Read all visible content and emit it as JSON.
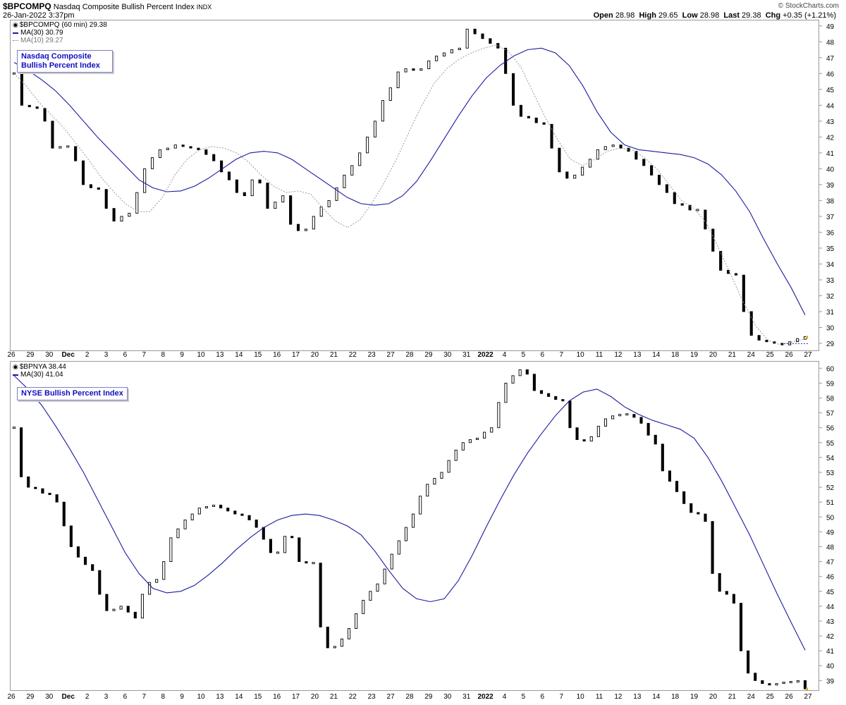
{
  "header": {
    "symbol": "$BPCOMPQ",
    "name": "Nasdaq Composite Bullish Percent Index",
    "exchange": "INDX",
    "datetime": "26-Jan-2022 3:37pm",
    "brand": "© StockCharts.com",
    "open_label": "Open",
    "open": "28.98",
    "high_label": "High",
    "high": "29.65",
    "low_label": "Low",
    "low": "28.98",
    "last_label": "Last",
    "last": "29.38",
    "chg_label": "Chg",
    "chg": "+0.35 (+1.21%)"
  },
  "colors": {
    "ma30": "#1a1aa0",
    "ma10": "#999999",
    "candle_down": "#000000",
    "candle_up": "#ffffff",
    "annotation": "#1010c0",
    "last_marker": "#d4b000"
  },
  "x_axis_labels": [
    "26",
    "29",
    "30",
    "Dec",
    "2",
    "3",
    "6",
    "7",
    "8",
    "9",
    "10",
    "13",
    "14",
    "15",
    "16",
    "17",
    "20",
    "21",
    "22",
    "23",
    "27",
    "28",
    "29",
    "30",
    "31",
    "2022",
    "4",
    "5",
    "6",
    "7",
    "10",
    "11",
    "12",
    "13",
    "14",
    "18",
    "19",
    "20",
    "21",
    "24",
    "25",
    "26",
    "27"
  ],
  "chart_data": [
    {
      "type": "line",
      "title": "$BPCOMPQ (60 min) 29.38",
      "annotation": "Nasdaq Composite Bullish Percent Index",
      "ylim": [
        28.6,
        49.3
      ],
      "y_ticks": [
        29,
        30,
        31,
        32,
        33,
        34,
        35,
        36,
        37,
        38,
        39,
        40,
        41,
        42,
        43,
        44,
        45,
        46,
        47,
        48,
        49
      ],
      "series": [
        {
          "name": "$BPCOMPQ (60 min) 29.38",
          "style": "candlestick",
          "values": [
            46,
            44,
            43.9,
            43.8,
            43,
            41.3,
            41.4,
            41.4,
            40.5,
            39,
            38.8,
            38.7,
            37.5,
            36.7,
            37,
            37.2,
            38.5,
            40,
            40.7,
            41.2,
            41.3,
            41.5,
            41.4,
            41.3,
            41.2,
            40.9,
            40.5,
            39.8,
            39.3,
            38.5,
            38.3,
            39.3,
            39.1,
            37.5,
            37.9,
            38.3,
            36.5,
            36.1,
            36.2,
            37,
            37.6,
            38,
            38.8,
            39.6,
            40.2,
            41,
            42,
            43,
            44.3,
            45.1,
            46.1,
            46.3,
            46.2,
            46.3,
            46.8,
            47.1,
            47.3,
            47.5,
            47.6,
            48.8,
            48.5,
            48.2,
            47.9,
            47.6,
            46,
            44,
            43.3,
            43.2,
            42.9,
            42.8,
            41.3,
            39.8,
            39.4,
            39.6,
            40.1,
            40.6,
            41.2,
            41.4,
            41.5,
            41.3,
            41.1,
            40.6,
            40.2,
            39.6,
            39,
            38.5,
            37.8,
            37.7,
            37.4,
            37.4,
            36.2,
            34.8,
            33.6,
            33.4,
            33.3,
            31,
            29.5,
            29.2,
            29.1,
            29,
            28.9,
            29.1,
            29.3,
            29.38
          ]
        },
        {
          "name": "MA(30) 30.79",
          "style": "line",
          "values": [
            46.7,
            46.2,
            45.6,
            44.9,
            44,
            43,
            42,
            41.1,
            40.2,
            39.3,
            38.8,
            38.55,
            38.6,
            38.9,
            39.4,
            40,
            40.6,
            41,
            41.1,
            41,
            40.6,
            40,
            39.4,
            38.8,
            38.2,
            37.8,
            37.7,
            37.8,
            38.3,
            39.2,
            40.5,
            41.9,
            43.3,
            44.6,
            45.7,
            46.5,
            47.1,
            47.5,
            47.6,
            47.3,
            46.5,
            45.2,
            43.6,
            42.3,
            41.5,
            41.2,
            41.1,
            41,
            40.9,
            40.7,
            40.3,
            39.6,
            38.6,
            37.3,
            35.6,
            34,
            32.5,
            30.79
          ]
        },
        {
          "name": "MA(10) 29.27",
          "style": "dotted",
          "values": [
            46,
            45.2,
            44.2,
            43.4,
            42.6,
            41.6,
            40.6,
            39.5,
            38.6,
            37.8,
            37.3,
            37.3,
            38.2,
            39.6,
            40.6,
            41.2,
            41.4,
            41.3,
            41,
            40.4,
            39.6,
            38.9,
            38.5,
            38.6,
            38.4,
            37.5,
            36.7,
            36.3,
            36.8,
            37.9,
            39.2,
            40.7,
            42.4,
            44,
            45.4,
            46.3,
            46.9,
            47.3,
            47.6,
            47.8,
            47.4,
            46.4,
            44.8,
            43.2,
            41.8,
            40.6,
            40.2,
            40.6,
            41.1,
            41.3,
            41.2,
            40.7,
            40,
            39,
            38,
            37.5,
            36.6,
            35,
            33.3,
            31.6,
            30.1,
            29.2,
            28.9,
            29.1,
            29.27
          ]
        }
      ]
    },
    {
      "type": "line",
      "title": "$BPNYA 38.44",
      "annotation": "NYSE Bullish Percent Index",
      "ylim": [
        38.4,
        60.3
      ],
      "y_ticks": [
        39,
        40,
        41,
        42,
        43,
        44,
        45,
        46,
        47,
        48,
        49,
        50,
        51,
        52,
        53,
        54,
        55,
        56,
        57,
        58,
        59,
        60
      ],
      "series": [
        {
          "name": "$BPNYA 38.44",
          "style": "candlestick",
          "values": [
            56,
            52.7,
            52,
            51.9,
            51.6,
            51.5,
            51,
            49.4,
            48,
            47.3,
            46.8,
            46.4,
            44.8,
            43.7,
            43.8,
            44,
            43.6,
            43.2,
            44.8,
            45.6,
            45.8,
            47,
            48.6,
            49.2,
            49.8,
            50.2,
            50.6,
            50.7,
            50.8,
            50.6,
            50.4,
            50.2,
            50.1,
            49.8,
            49.3,
            48.5,
            47.6,
            47.6,
            48.7,
            48.6,
            47,
            46.9,
            46.9,
            42.6,
            41.2,
            41.3,
            41.8,
            42.5,
            43.5,
            44.4,
            45,
            45.5,
            46.5,
            47.5,
            48.4,
            49.3,
            50.2,
            51.4,
            52.2,
            52.6,
            53,
            53.8,
            54.5,
            55,
            55.2,
            55.3,
            55.7,
            56,
            57.7,
            59,
            59.5,
            59.9,
            59.6,
            58.5,
            58.3,
            58.1,
            57.9,
            57.8,
            56,
            55.2,
            55.1,
            55.4,
            56.1,
            56.6,
            56.8,
            56.9,
            56.9,
            56.7,
            56.3,
            55.5,
            54.9,
            53.1,
            52.4,
            51.7,
            50.9,
            50.3,
            50.2,
            49.7,
            46.2,
            45,
            44.8,
            44.2,
            41,
            39.5,
            39,
            38.8,
            38.7,
            38.8,
            38.9,
            38.9,
            39,
            38.44
          ]
        },
        {
          "name": "MA(30) 41.04",
          "style": "line",
          "values": [
            59.5,
            58.6,
            57.5,
            56.1,
            54.6,
            53,
            51.2,
            49.4,
            47.6,
            46.2,
            45.2,
            44.9,
            45,
            45.4,
            46.1,
            46.9,
            47.8,
            48.6,
            49.3,
            49.8,
            50.1,
            50.2,
            50.1,
            49.8,
            49.4,
            48.8,
            47.7,
            46.4,
            45.2,
            44.5,
            44.3,
            44.5,
            45.7,
            47.4,
            49.3,
            51.1,
            52.8,
            54.3,
            55.6,
            56.8,
            57.8,
            58.4,
            58.6,
            58.1,
            57.4,
            56.9,
            56.5,
            56.2,
            55.9,
            55.3,
            54,
            52.4,
            50.6,
            48.8,
            46.8,
            44.8,
            42.9,
            41.04
          ]
        }
      ]
    }
  ]
}
